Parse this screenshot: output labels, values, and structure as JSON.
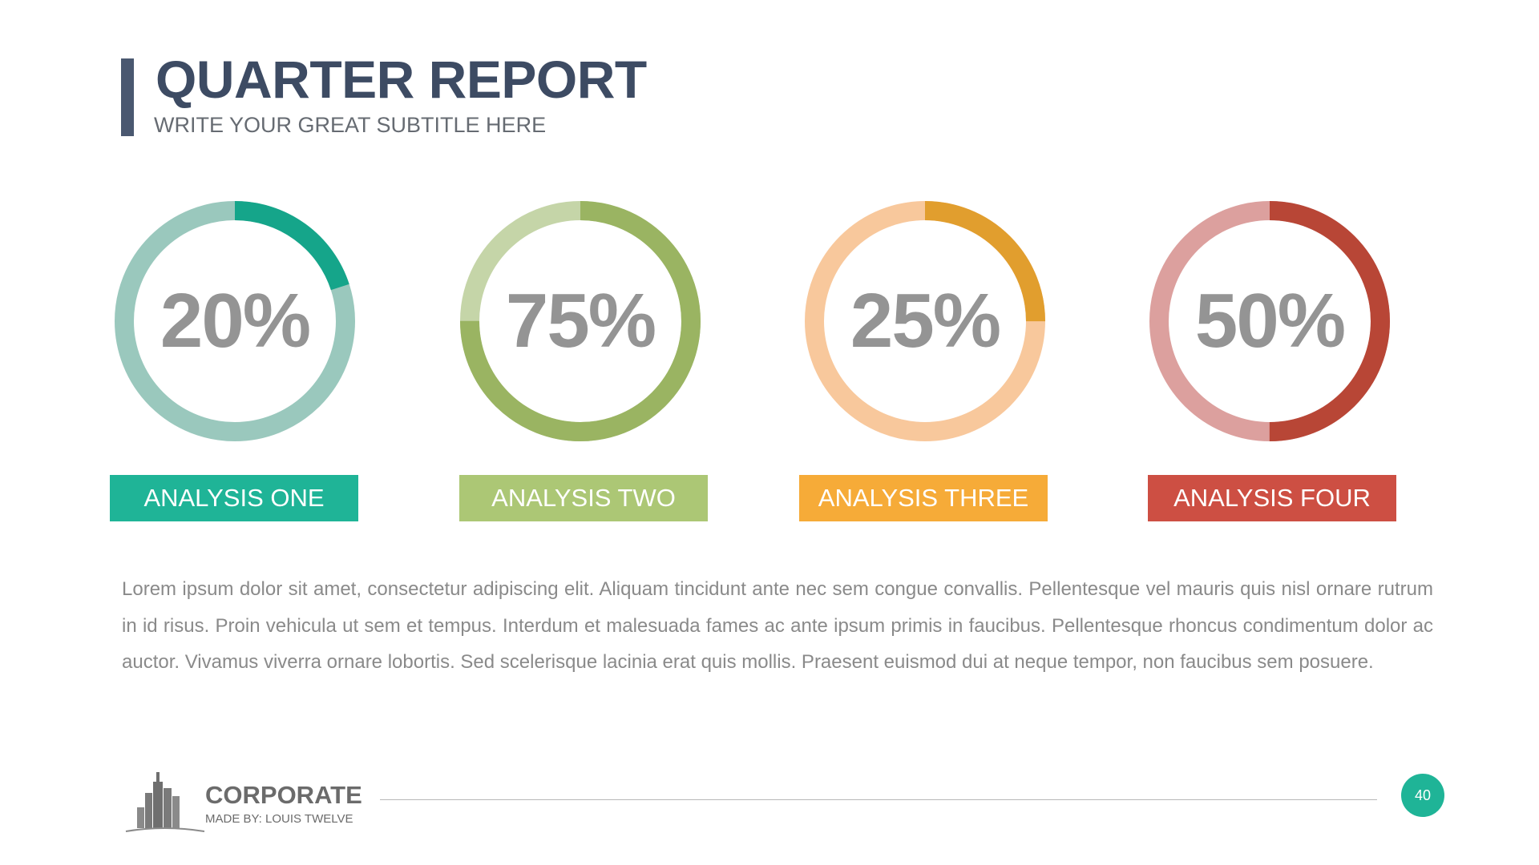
{
  "header": {
    "title": "QUARTER REPORT",
    "subtitle": "WRITE YOUR GREAT SUBTITLE HERE",
    "accent_color": "#4a5870"
  },
  "chart_data": {
    "type": "donut",
    "items": [
      {
        "label": "ANALYSIS ONE",
        "value_label": "20%",
        "value": 20,
        "color": "#15a58a",
        "track_color": "#9ac8bd",
        "box_color": "#1fb497"
      },
      {
        "label": "ANALYSIS TWO",
        "value_label": "75%",
        "value": 75,
        "color": "#9ab462",
        "track_color": "#c5d5a8",
        "box_color": "#acc775"
      },
      {
        "label": "ANALYSIS THREE",
        "value_label": "25%",
        "value": 25,
        "color": "#e19e2e",
        "track_color": "#f8c89c",
        "box_color": "#f6ab38"
      },
      {
        "label": "ANALYSIS FOUR",
        "value_label": "50%",
        "value": 50,
        "color": "#b84636",
        "track_color": "#dca09e",
        "box_color": "#cd4f43"
      }
    ]
  },
  "body": {
    "text": "Lorem ipsum dolor sit amet, consectetur adipiscing elit. Aliquam tincidunt ante nec sem congue convallis. Pellentesque vel mauris quis nisl ornare rutrum in id risus. Proin vehicula ut sem et tempus. Interdum et malesuada fames ac ante ipsum primis in faucibus. Pellentesque rhoncus condimentum dolor ac auctor. Vivamus viverra ornare lobortis. Sed scelerisque lacinia erat quis mollis. Praesent euismod dui at neque tempor, non faucibus sem posuere."
  },
  "footer": {
    "logo_icon": "city-buildings-icon",
    "brand": "CORPORATE",
    "made_by": "MADE BY: LOUIS TWELVE",
    "page_number": "40",
    "page_badge_color": "#1fb497"
  }
}
